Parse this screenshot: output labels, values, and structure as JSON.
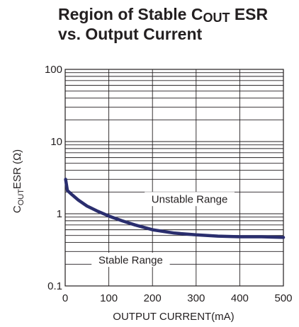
{
  "chart_data": {
    "type": "line",
    "title_line1_prefix": "Region of Stable C",
    "title_sub": "OUT",
    "title_line1_suffix": " ESR",
    "title_line2": "vs. Output Current",
    "xlabel": "OUTPUT CURRENT(mA)",
    "ylabel_prefix": "C",
    "ylabel_sub": "OUT",
    "ylabel_suffix": "ESR (Ω)",
    "x_scale": "linear",
    "y_scale": "log",
    "xlim": [
      0,
      500
    ],
    "ylim": [
      0.1,
      100
    ],
    "x_ticks": [
      0,
      100,
      200,
      300,
      400,
      500
    ],
    "x_tick_labels": [
      "0",
      "100",
      "200",
      "300",
      "400",
      "500"
    ],
    "y_ticks": [
      0.1,
      1,
      10,
      100
    ],
    "y_tick_labels": [
      "0.1",
      "1",
      "10",
      "100"
    ],
    "grid": true,
    "annotations": [
      {
        "text": "Unstable Range",
        "x": 285,
        "y": 1.6
      },
      {
        "text": "Stable Range",
        "x": 150,
        "y": 0.23
      }
    ],
    "series": [
      {
        "color": "#2a2e6e",
        "x": [
          1,
          5,
          15,
          30,
          50,
          75,
          100,
          130,
          160,
          200,
          250,
          300,
          350,
          400,
          450,
          500
        ],
        "y": [
          3.0,
          2.1,
          1.85,
          1.55,
          1.28,
          1.08,
          0.93,
          0.8,
          0.7,
          0.6,
          0.54,
          0.51,
          0.49,
          0.48,
          0.48,
          0.47
        ]
      }
    ]
  }
}
